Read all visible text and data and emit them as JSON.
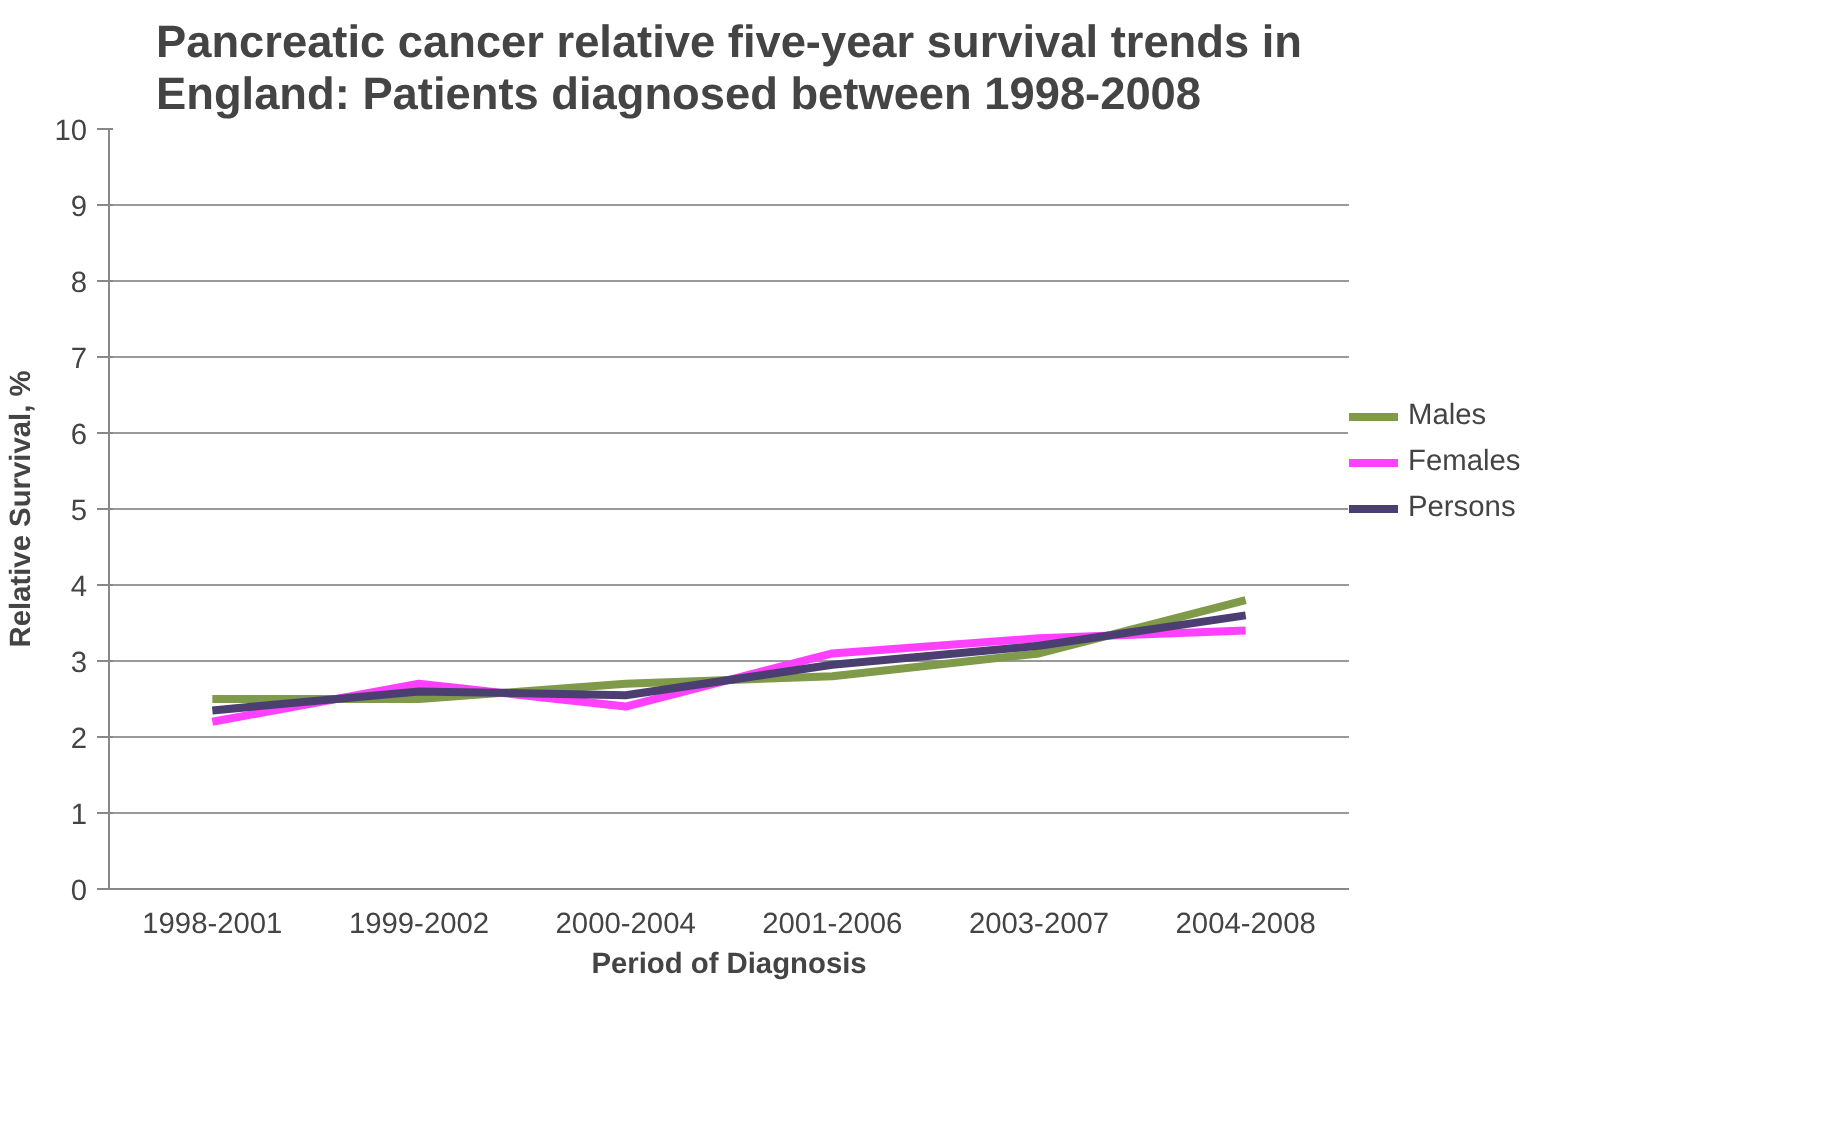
{
  "chart_data": {
    "type": "line",
    "title": "Pancreatic cancer relative five-year survival trends in England: Patients diagnosed between 1998-2008",
    "xlabel": "Period of Diagnosis",
    "ylabel": "Relative Survival, %",
    "categories": [
      "1998-2001",
      "1999-2002",
      "2000-2004",
      "2001-2006",
      "2003-2007",
      "2004-2008"
    ],
    "series": [
      {
        "name": "Males",
        "color": "#7f9a48",
        "values": [
          2.5,
          2.5,
          2.7,
          2.8,
          3.1,
          3.8
        ]
      },
      {
        "name": "Females",
        "color": "#ff40ff",
        "values": [
          2.2,
          2.7,
          2.4,
          3.1,
          3.3,
          3.4
        ]
      },
      {
        "name": "Persons",
        "color": "#4b3f72",
        "values": [
          2.35,
          2.6,
          2.55,
          2.95,
          3.2,
          3.6
        ]
      }
    ],
    "ylim": [
      0,
      10
    ],
    "yticks": [
      0,
      1,
      2,
      3,
      4,
      5,
      6,
      7,
      8,
      9,
      10
    ],
    "grid": "y",
    "legend": "right",
    "marker": "none",
    "line_style": "solid"
  }
}
